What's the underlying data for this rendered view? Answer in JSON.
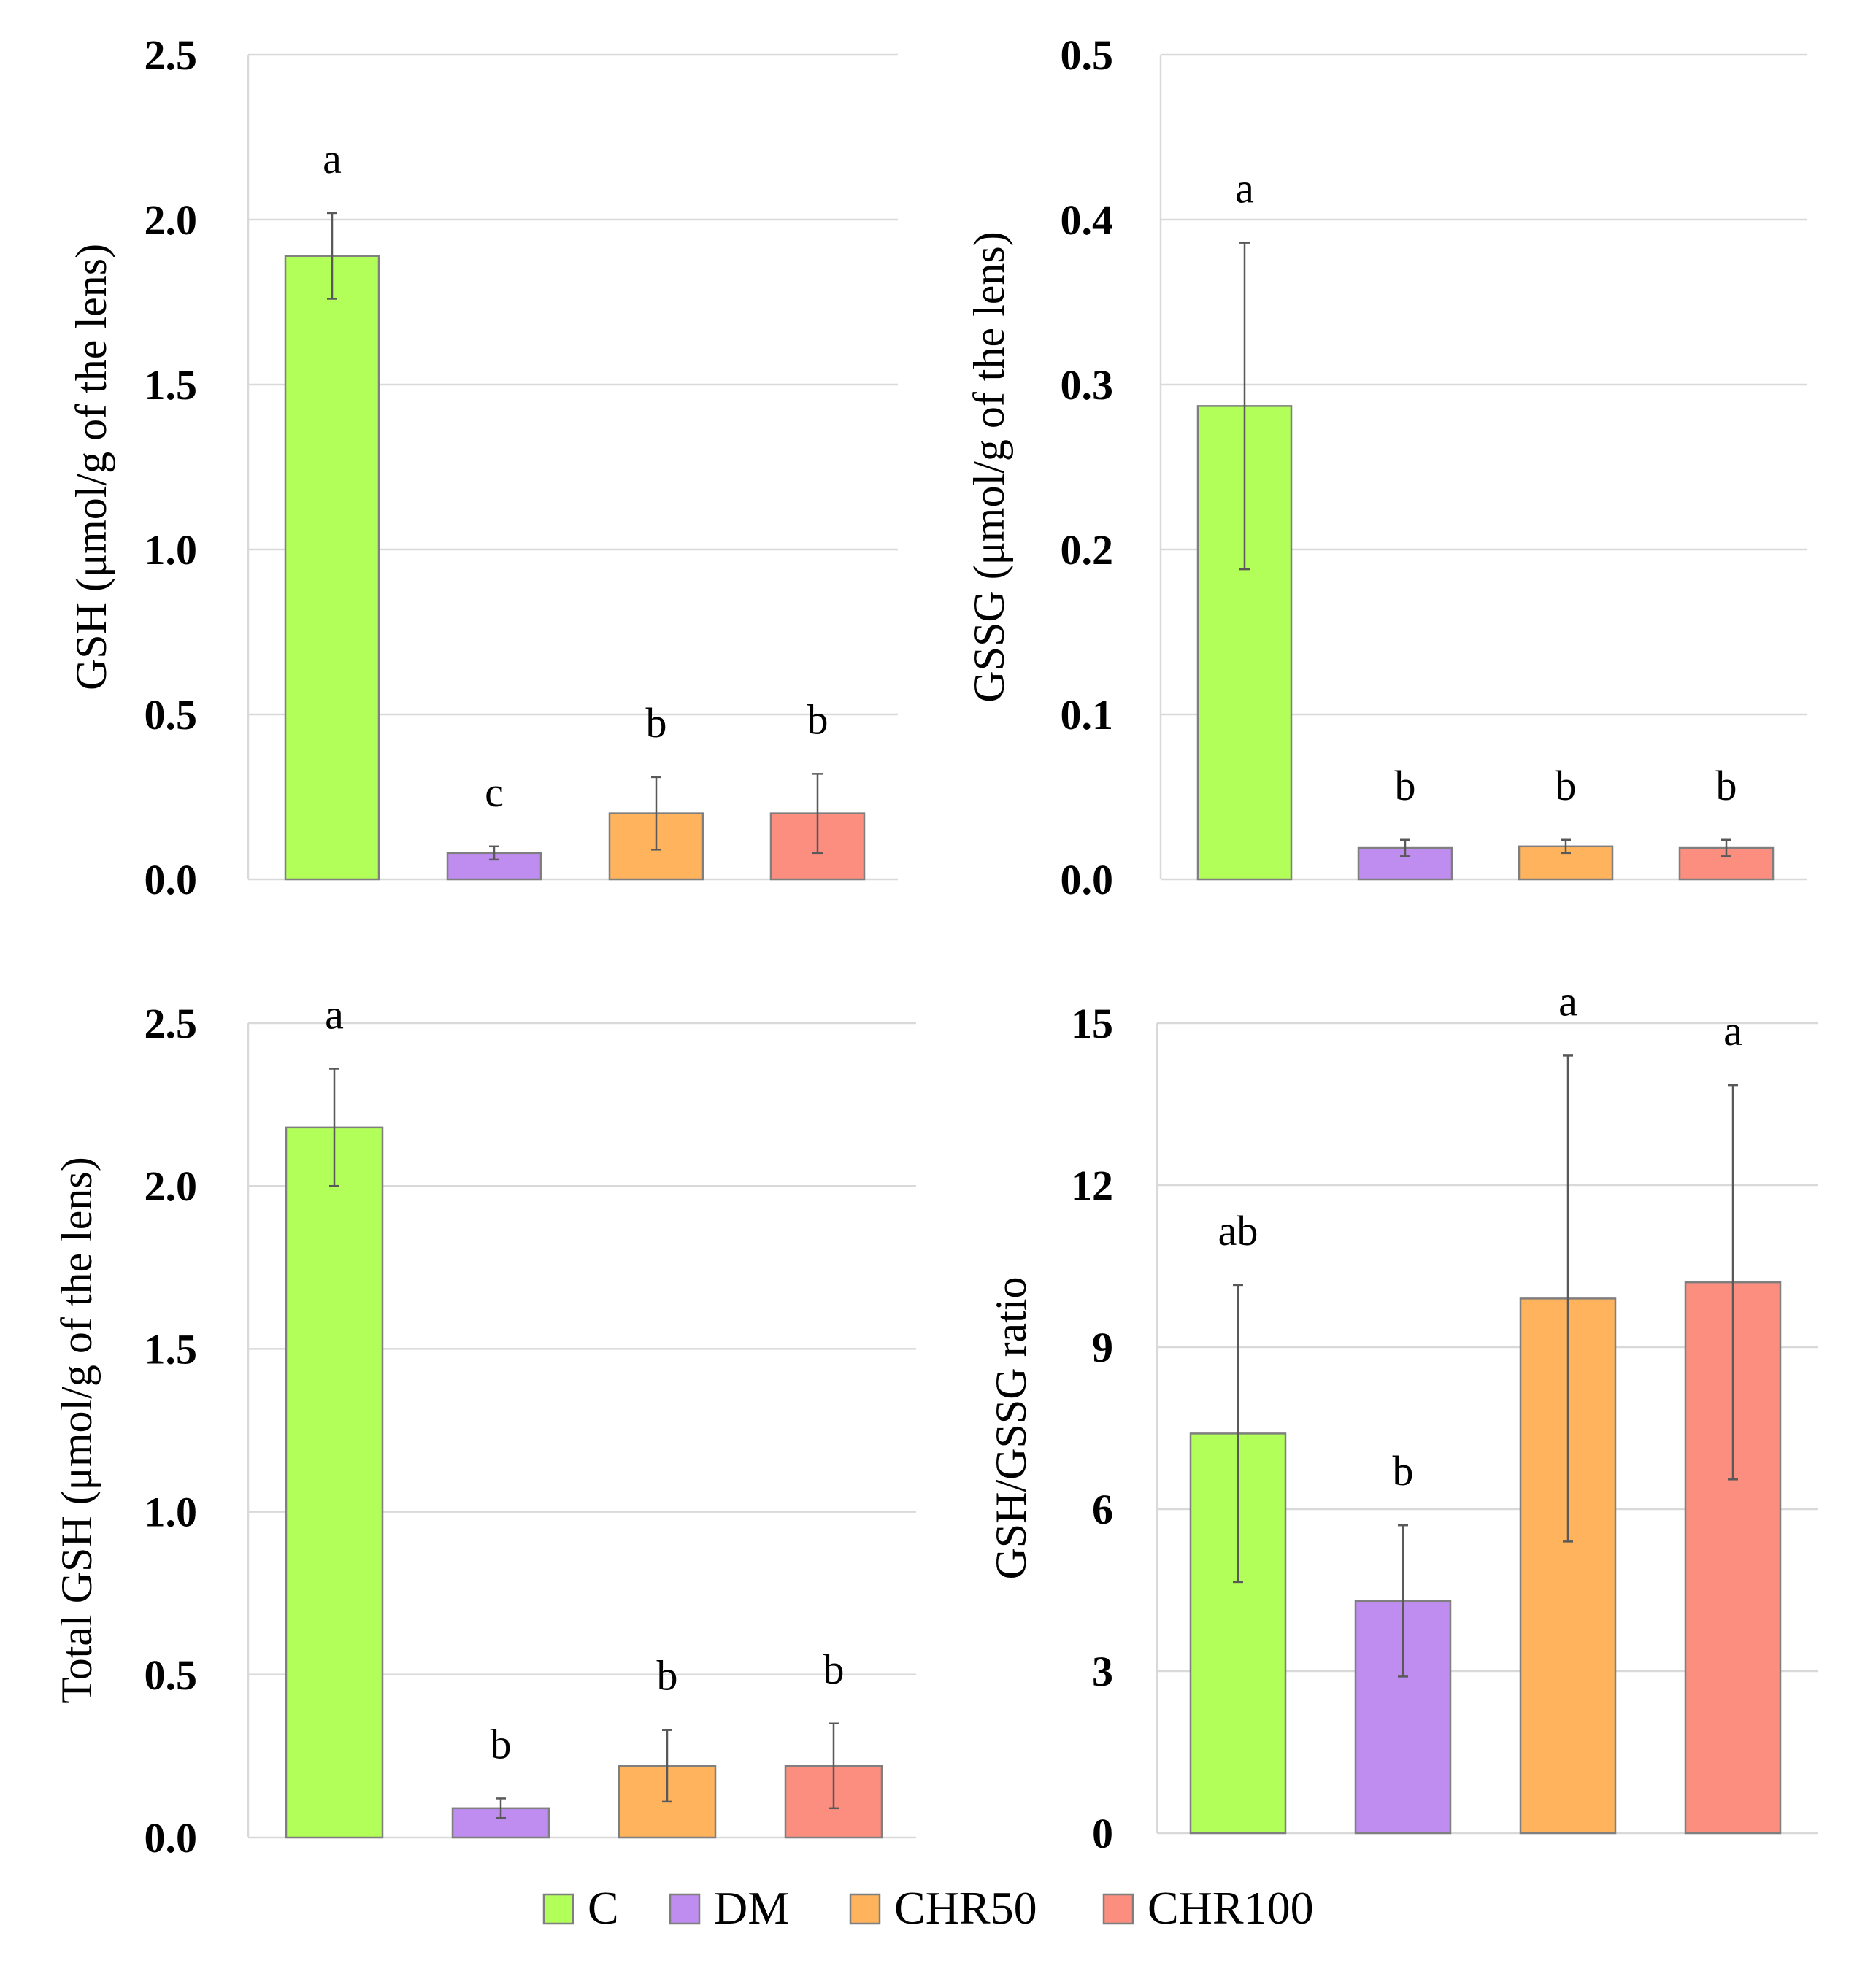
{
  "chart_data": [
    {
      "type": "bar",
      "categories": [
        "C",
        "DM",
        "CHR50",
        "CHR100"
      ],
      "values": [
        1.89,
        0.08,
        0.2,
        0.2
      ],
      "errors": [
        0.13,
        0.02,
        0.11,
        0.12
      ],
      "significance": [
        "a",
        "c",
        "b",
        "b"
      ],
      "ylabel": "GSH (μmol/g of the lens)",
      "ylim": [
        0,
        2.5
      ],
      "yticks": [
        "0.0",
        "0.5",
        "1.0",
        "1.5",
        "2.0",
        "2.5"
      ],
      "ytick_values": [
        0,
        0.5,
        1.0,
        1.5,
        2.0,
        2.5
      ],
      "grid": true
    },
    {
      "type": "bar",
      "categories": [
        "C",
        "DM",
        "CHR50",
        "CHR100"
      ],
      "values": [
        0.287,
        0.019,
        0.02,
        0.019
      ],
      "errors": [
        0.099,
        0.005,
        0.004,
        0.005
      ],
      "significance": [
        "a",
        "b",
        "b",
        "b"
      ],
      "ylabel": "GSSG (μmol/g of the lens)",
      "ylim": [
        0,
        0.5
      ],
      "yticks": [
        "0.0",
        "0.1",
        "0.2",
        "0.3",
        "0.4",
        "0.5"
      ],
      "ytick_values": [
        0,
        0.1,
        0.2,
        0.3,
        0.4,
        0.5
      ],
      "grid": true
    },
    {
      "type": "bar",
      "categories": [
        "C",
        "DM",
        "CHR50",
        "CHR100"
      ],
      "values": [
        2.18,
        0.09,
        0.22,
        0.22
      ],
      "errors": [
        0.18,
        0.03,
        0.11,
        0.13
      ],
      "significance": [
        "a",
        "b",
        "b",
        "b"
      ],
      "ylabel": "Total GSH (μmol/g of the lens)",
      "ylim": [
        0,
        2.5
      ],
      "yticks": [
        "0.0",
        "0.5",
        "1.0",
        "1.5",
        "2.0",
        "2.5"
      ],
      "ytick_values": [
        0,
        0.5,
        1.0,
        1.5,
        2.0,
        2.5
      ],
      "grid": true
    },
    {
      "type": "bar",
      "categories": [
        "C",
        "DM",
        "CHR50",
        "CHR100"
      ],
      "values": [
        7.4,
        4.3,
        9.9,
        10.2
      ],
      "errors": [
        2.75,
        1.4,
        4.5,
        3.65
      ],
      "significance": [
        "ab",
        "b",
        "a",
        "a"
      ],
      "ylabel": "GSH/GSSG ratio",
      "ylim": [
        0,
        15
      ],
      "yticks": [
        "0",
        "3",
        "6",
        "9",
        "12",
        "15"
      ],
      "ytick_values": [
        0,
        3,
        6,
        9,
        12,
        15
      ],
      "grid": true
    }
  ],
  "legend": {
    "position": "bottom-center",
    "items": [
      {
        "label": "C",
        "color": "#b2ff59"
      },
      {
        "label": "DM",
        "color": "#bf8cf0"
      },
      {
        "label": "CHR50",
        "color": "#ffb35c"
      },
      {
        "label": "CHR100",
        "color": "#fb8e7f"
      }
    ]
  },
  "colors": [
    "#b2ff59",
    "#bf8cf0",
    "#ffb35c",
    "#fb8e7f"
  ]
}
